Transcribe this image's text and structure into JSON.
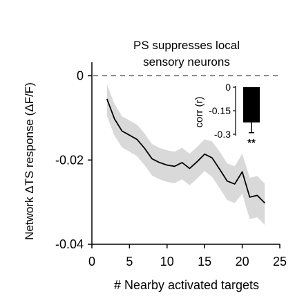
{
  "colors": {
    "line": "#000000",
    "band": "#d9d9d9",
    "bar": "#000000",
    "reference_line": "#555555"
  },
  "chart_data": [
    {
      "type": "line",
      "title": "PS suppresses local sensory neurons",
      "xlabel": "# Nearby activated targets",
      "ylabel": "Network ΔTS response  (ΔF/F)",
      "xlim": [
        0,
        25
      ],
      "ylim": [
        -0.04,
        0.002
      ],
      "xticks": [
        "0",
        "5",
        "10",
        "15",
        "20",
        "25"
      ],
      "yticks": [
        "0",
        "-0.02",
        "-0.04"
      ],
      "reference_line": {
        "y": 0,
        "style": "dashed"
      },
      "x": [
        2,
        3,
        4,
        5,
        6,
        7,
        8,
        9,
        10,
        11,
        12,
        13,
        14,
        15,
        16,
        17,
        18,
        19,
        20,
        21,
        22,
        23
      ],
      "y": [
        -0.0055,
        -0.0102,
        -0.0131,
        -0.0141,
        -0.0151,
        -0.0172,
        -0.0197,
        -0.0206,
        -0.0212,
        -0.0215,
        -0.0206,
        -0.022,
        -0.0204,
        -0.0186,
        -0.0195,
        -0.0222,
        -0.025,
        -0.0257,
        -0.0228,
        -0.0288,
        -0.0284,
        -0.0302
      ],
      "y_lower": [
        -0.0095,
        -0.0142,
        -0.017,
        -0.018,
        -0.0191,
        -0.0212,
        -0.0237,
        -0.0246,
        -0.0252,
        -0.0255,
        -0.0246,
        -0.026,
        -0.0244,
        -0.0226,
        -0.024,
        -0.0267,
        -0.0295,
        -0.0302,
        -0.028,
        -0.034,
        -0.0336,
        -0.0354
      ],
      "y_upper": [
        -0.002,
        -0.0067,
        -0.0096,
        -0.0106,
        -0.0116,
        -0.0137,
        -0.0162,
        -0.0171,
        -0.0177,
        -0.018,
        -0.0171,
        -0.0185,
        -0.0169,
        -0.0151,
        -0.0156,
        -0.018,
        -0.0208,
        -0.0215,
        -0.0185,
        -0.0242,
        -0.0238,
        -0.0256
      ],
      "grid": false,
      "legend": "none"
    },
    {
      "type": "bar",
      "role": "inset",
      "ylabel": "corr (r)",
      "ylim": [
        -0.3,
        0
      ],
      "yticks": [
        "0",
        "-0.15",
        "-0.3"
      ],
      "values": [
        -0.225
      ],
      "error": 0.065,
      "annotation": "**"
    }
  ]
}
